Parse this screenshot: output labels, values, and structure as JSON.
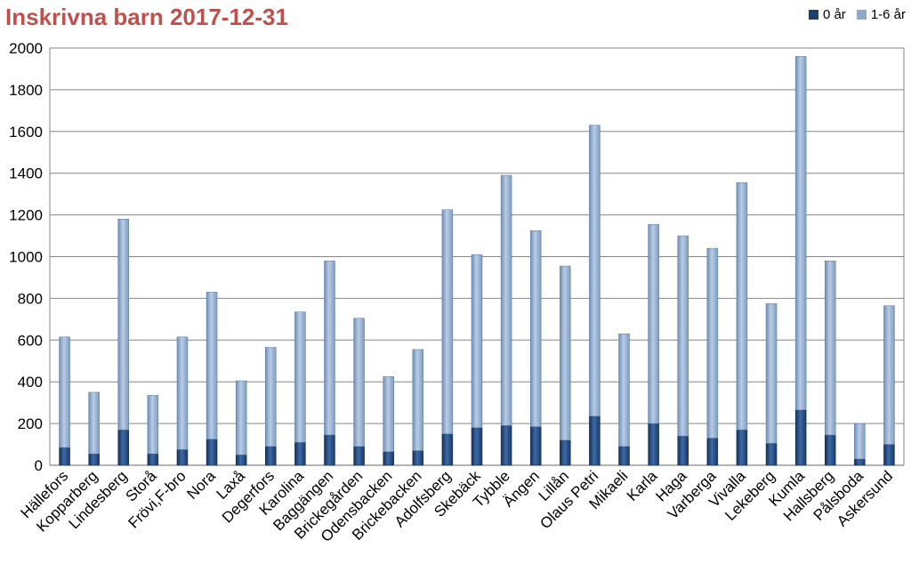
{
  "chart_data": {
    "type": "bar",
    "stacked": true,
    "title": "Inskrivna barn 2017-12-31",
    "xlabel": "",
    "ylabel": "",
    "ylim": [
      0,
      2000
    ],
    "yticks": [
      0,
      200,
      400,
      600,
      800,
      1000,
      1200,
      1400,
      1600,
      1800,
      2000
    ],
    "grid": true,
    "legend_position": "top-right",
    "categories": [
      "Hällefors",
      "Kopparberg",
      "Lindesberg",
      "Storå",
      "Frövi,F-bro",
      "Nora",
      "Laxå",
      "Degerfors",
      "Karolina",
      "Baggängen",
      "Brickegården",
      "Odensbacken",
      "Brickebacken",
      "Adolfsberg",
      "Skebäck",
      "Tybble",
      "Ängen",
      "Lillån",
      "Olaus Petri",
      "Mikaeli",
      "Karla",
      "Haga",
      "Varberga",
      "Vivalla",
      "Lekeberg",
      "Kumla",
      "Hallsberg",
      "Pålsboda",
      "Askersund"
    ],
    "series": [
      {
        "name": "0 år",
        "color": "#1f3f6e",
        "values": [
          85,
          55,
          170,
          55,
          75,
          125,
          50,
          90,
          110,
          145,
          90,
          65,
          70,
          150,
          180,
          190,
          185,
          120,
          235,
          90,
          200,
          140,
          130,
          170,
          105,
          265,
          145,
          30,
          100
        ]
      },
      {
        "name": "1-6 år",
        "color": "#8fa8c8",
        "values": [
          530,
          295,
          1010,
          280,
          540,
          705,
          355,
          475,
          625,
          835,
          615,
          360,
          485,
          1075,
          830,
          1200,
          940,
          835,
          1395,
          540,
          955,
          960,
          910,
          1185,
          670,
          1695,
          835,
          170,
          665
        ]
      }
    ]
  }
}
